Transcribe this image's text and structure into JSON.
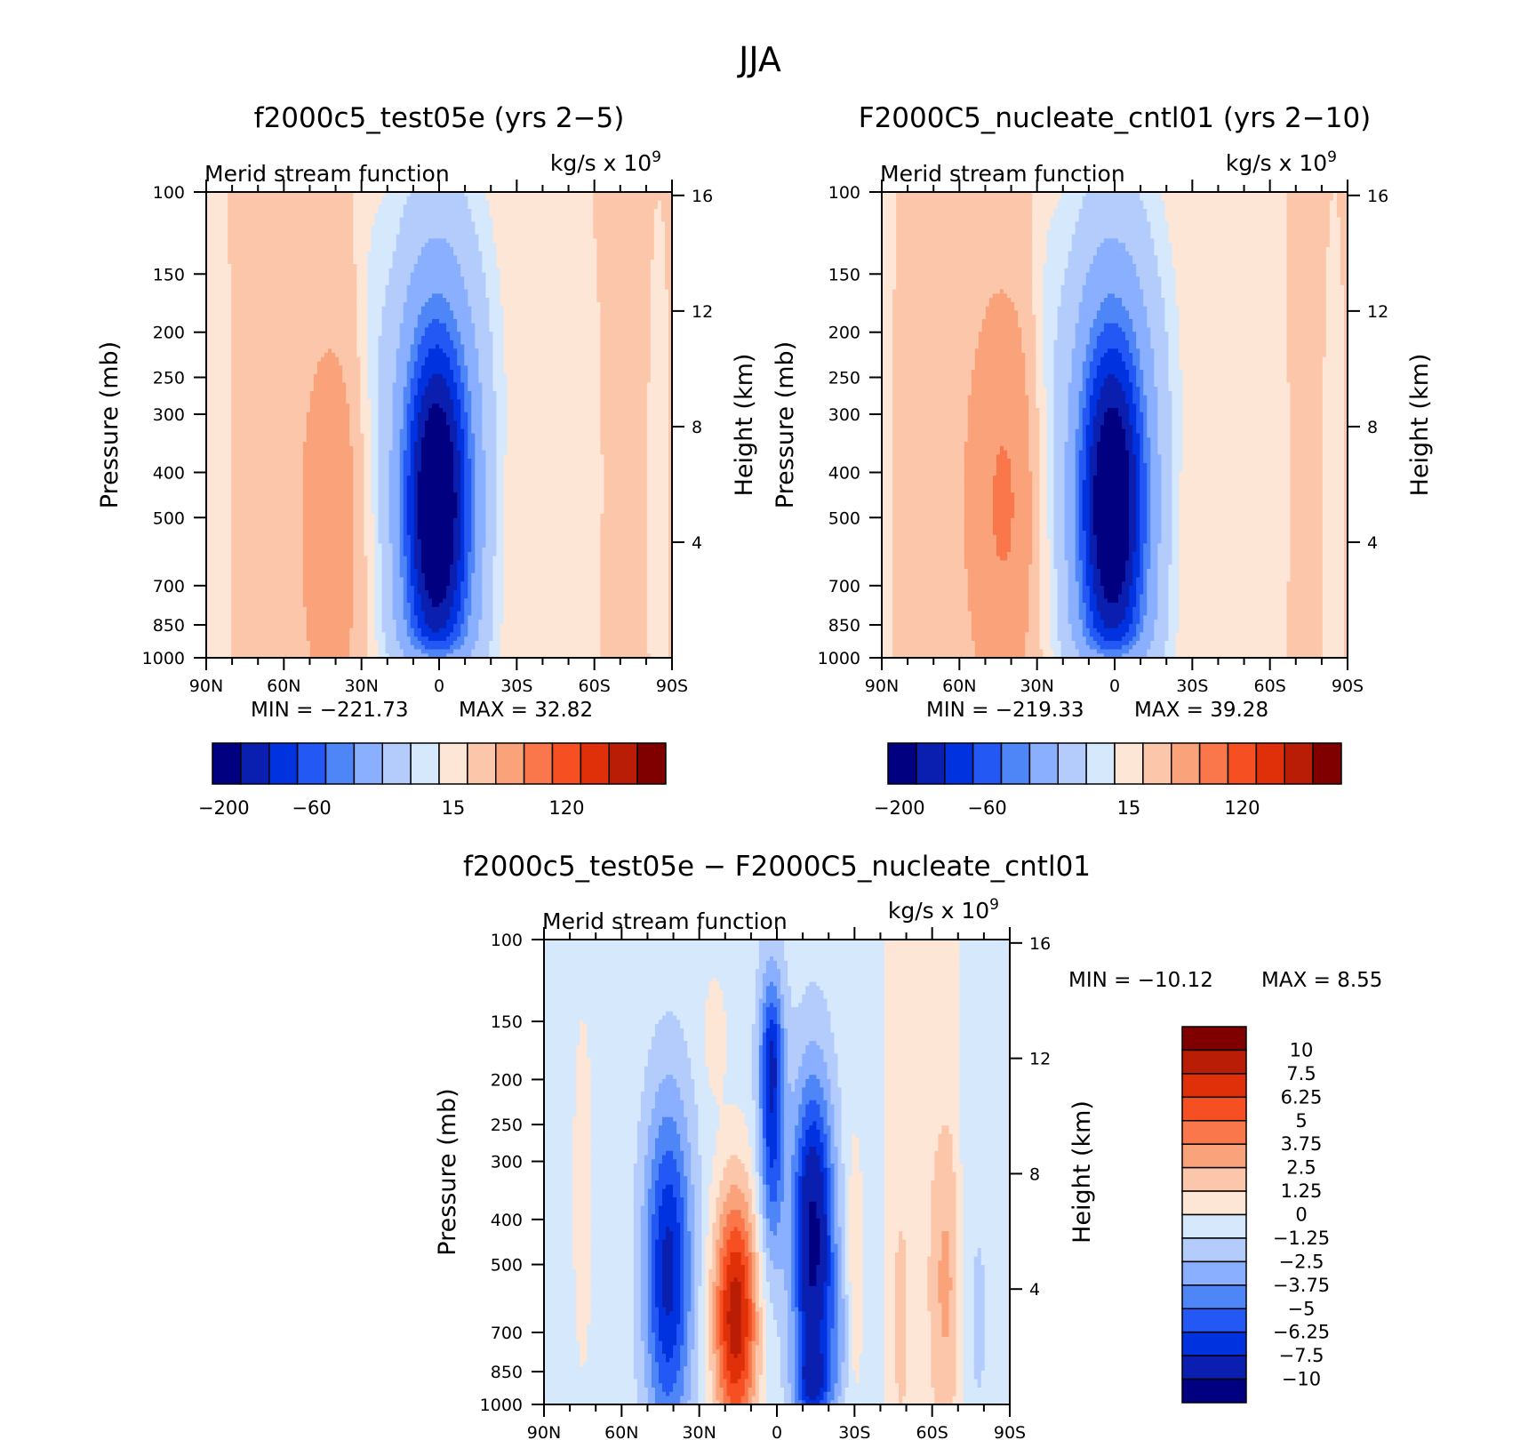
{
  "figure_title": "JJA",
  "levels": {
    "main": [
      -200,
      -180,
      -160,
      -140,
      -120,
      -80,
      -40,
      -20,
      0,
      20,
      40,
      80,
      120,
      140,
      160
    ],
    "diff": [
      -10,
      -7.5,
      -6.25,
      -5,
      -3.75,
      -2.5,
      -1.25,
      0,
      1.25,
      2.5,
      3.75,
      5,
      6.25,
      7.5,
      10
    ]
  },
  "colors": [
    "#000080",
    "#0a1fb0",
    "#0032e0",
    "#2358f5",
    "#4f86f7",
    "#8aafff",
    "#b3ccfb",
    "#d6e8fc",
    "#fde6d6",
    "#fcc6aa",
    "#faa27a",
    "#f9774a",
    "#f54f22",
    "#e03009",
    "#b91d05",
    "#800000"
  ],
  "chart_data": [
    {
      "type": "heatmap",
      "id": "p1",
      "title": "f2000c5_test05e (yrs 2−5)",
      "subtitle": "Merid stream function",
      "units_label": "kg/s x 10",
      "units_exp": "9",
      "xlabel": "",
      "ylabel": "Pressure (mb)",
      "ylabel_right": "Height (km)",
      "x_ticks": [
        "90N",
        "60N",
        "30N",
        "0",
        "30S",
        "60S",
        "90S"
      ],
      "x_range": [
        -90,
        90
      ],
      "y_ticks": [
        "100",
        "150",
        "200",
        "250",
        "300",
        "400",
        "500",
        "700",
        "850",
        "1000"
      ],
      "y_range_mb": [
        100,
        1000
      ],
      "height_ticks": [
        "16",
        "12",
        "8",
        "4"
      ],
      "min_label": "MIN = −221.73",
      "max_label": "MAX =   32.82",
      "min": -221.73,
      "max": 32.82,
      "colorbar_labels": [
        "−200",
        "−60",
        "15",
        "120"
      ],
      "features": [
        {
          "lat": 1,
          "p": 470,
          "sx": 13,
          "sp": 0.9,
          "amp": -232
        },
        {
          "lat": 1,
          "p": 1050,
          "sx": 11,
          "sp": 0.08,
          "amp": 55
        },
        {
          "lat": 38,
          "p": 520,
          "sx": 13,
          "sp": 0.85,
          "amp": 36
        },
        {
          "lat": -24,
          "p": 560,
          "sx": 5,
          "sp": 0.55,
          "amp": 14
        },
        {
          "lat": 26,
          "p": 180,
          "sx": 4,
          "sp": 0.5,
          "amp": -16
        },
        {
          "lat": -48,
          "p": 420,
          "sx": 9,
          "sp": 1.2,
          "amp": -9
        },
        {
          "lat": -85,
          "p": 500,
          "sx": 3,
          "sp": 1.1,
          "amp": -8
        },
        {
          "lat": 84,
          "p": 500,
          "sx": 3,
          "sp": 1.0,
          "amp": -6
        }
      ],
      "background": [
        {
          "lat": -90,
          "v": 3
        },
        {
          "lat": -55,
          "v": 2
        },
        {
          "lat": -45,
          "v": -2
        },
        {
          "lat": 30,
          "v": -2
        },
        {
          "lat": 48,
          "v": 2
        },
        {
          "lat": 80,
          "v": 2
        },
        {
          "lat": 90,
          "v": -2
        }
      ]
    },
    {
      "type": "heatmap",
      "id": "p2",
      "title": "F2000C5_nucleate_cntl01 (yrs 2−10)",
      "subtitle": "Merid stream function",
      "units_label": "kg/s x 10",
      "units_exp": "9",
      "xlabel": "",
      "ylabel": "Pressure (mb)",
      "ylabel_right": "Height (km)",
      "x_ticks": [
        "90N",
        "60N",
        "30N",
        "0",
        "30S",
        "60S",
        "90S"
      ],
      "x_range": [
        -90,
        90
      ],
      "y_ticks": [
        "100",
        "150",
        "200",
        "250",
        "300",
        "400",
        "500",
        "700",
        "850",
        "1000"
      ],
      "y_range_mb": [
        100,
        1000
      ],
      "height_ticks": [
        "16",
        "12",
        "8",
        "4"
      ],
      "min_label": "MIN = −219.33",
      "max_label": "MAX =   39.28",
      "min": -219.33,
      "max": 39.28,
      "colorbar_labels": [
        "−200",
        "−60",
        "15",
        "120"
      ],
      "features": [
        {
          "lat": 1,
          "p": 470,
          "sx": 13,
          "sp": 0.9,
          "amp": -230
        },
        {
          "lat": 1,
          "p": 1050,
          "sx": 11,
          "sp": 0.08,
          "amp": 55
        },
        {
          "lat": 41,
          "p": 470,
          "sx": 13,
          "sp": 0.85,
          "amp": 43
        },
        {
          "lat": -24,
          "p": 560,
          "sx": 5,
          "sp": 0.55,
          "amp": 13
        },
        {
          "lat": 26,
          "p": 180,
          "sx": 4,
          "sp": 0.5,
          "amp": -16
        },
        {
          "lat": -48,
          "p": 420,
          "sx": 9,
          "sp": 1.2,
          "amp": -9
        },
        {
          "lat": -85,
          "p": 500,
          "sx": 3,
          "sp": 1.1,
          "amp": -8
        }
      ],
      "background": [
        {
          "lat": -90,
          "v": 3
        },
        {
          "lat": -70,
          "v": 2
        },
        {
          "lat": -60,
          "v": -2
        },
        {
          "lat": 28,
          "v": -2
        },
        {
          "lat": 48,
          "v": 2
        },
        {
          "lat": 80,
          "v": 2
        },
        {
          "lat": 90,
          "v": -2
        }
      ]
    },
    {
      "type": "heatmap",
      "id": "p3",
      "title": "f2000c5_test05e − F2000C5_nucleate_cntl01",
      "subtitle": "Merid stream function",
      "units_label": "kg/s x 10",
      "units_exp": "9",
      "xlabel": "",
      "ylabel": "Pressure (mb)",
      "ylabel_right": "Height (km)",
      "x_ticks": [
        "90N",
        "60N",
        "30N",
        "0",
        "30S",
        "60S",
        "90S"
      ],
      "x_range": [
        -90,
        90
      ],
      "y_ticks": [
        "100",
        "150",
        "200",
        "250",
        "300",
        "400",
        "500",
        "700",
        "850",
        "1000"
      ],
      "y_range_mb": [
        100,
        1000
      ],
      "height_ticks": [
        "16",
        "12",
        "8",
        "4"
      ],
      "min_label": "MIN = −10.12",
      "max_label": "MAX =    8.55",
      "min": -10.12,
      "max": 8.55,
      "colorbar_labels": [
        "10",
        "7.5",
        "6.25",
        "5",
        "3.75",
        "2.5",
        "1.25",
        "0",
        "−1.25",
        "−2.5",
        "−3.75",
        "−5",
        "−6.25",
        "−7.5",
        "−10"
      ],
      "features": [
        {
          "lat": -14,
          "p": 450,
          "sx": 5.5,
          "sp": 0.55,
          "amp": -10.2
        },
        {
          "lat": -14,
          "p": 900,
          "sx": 5,
          "sp": 0.12,
          "amp": -4
        },
        {
          "lat": 2,
          "p": 240,
          "sx": 3.5,
          "sp": 0.5,
          "amp": -6.5
        },
        {
          "lat": 2,
          "p": 170,
          "sx": 3,
          "sp": 0.18,
          "amp": -2
        },
        {
          "lat": 16,
          "p": 650,
          "sx": 6,
          "sp": 0.45,
          "amp": 9
        },
        {
          "lat": 42,
          "p": 520,
          "sx": 6.5,
          "sp": 0.6,
          "amp": -7.5
        },
        {
          "lat": 24,
          "p": 160,
          "sx": 3,
          "sp": 0.2,
          "amp": 1.6
        },
        {
          "lat": -65,
          "p": 550,
          "sx": 4,
          "sp": 0.5,
          "amp": 2.2
        },
        {
          "lat": -48,
          "p": 650,
          "sx": 2,
          "sp": 0.35,
          "amp": 1.4
        },
        {
          "lat": -30,
          "p": 500,
          "sx": 2.5,
          "sp": 0.5,
          "amp": 1.6
        },
        {
          "lat": -24,
          "p": 700,
          "sx": 3,
          "sp": 0.25,
          "amp": -1.8
        },
        {
          "lat": 75,
          "p": 350,
          "sx": 2.5,
          "sp": 0.6,
          "amp": 1.4
        },
        {
          "lat": -78,
          "p": 650,
          "sx": 2,
          "sp": 0.3,
          "amp": -1.5
        }
      ],
      "background": [
        {
          "lat": -90,
          "v": -0.5
        },
        {
          "lat": -72,
          "v": -0.5
        },
        {
          "lat": -68,
          "v": 0.6
        },
        {
          "lat": -44,
          "v": 0.6
        },
        {
          "lat": -40,
          "v": -0.6
        },
        {
          "lat": 28,
          "v": -0.6
        },
        {
          "lat": 40,
          "v": -0.5
        },
        {
          "lat": 90,
          "v": -0.5
        }
      ]
    }
  ]
}
